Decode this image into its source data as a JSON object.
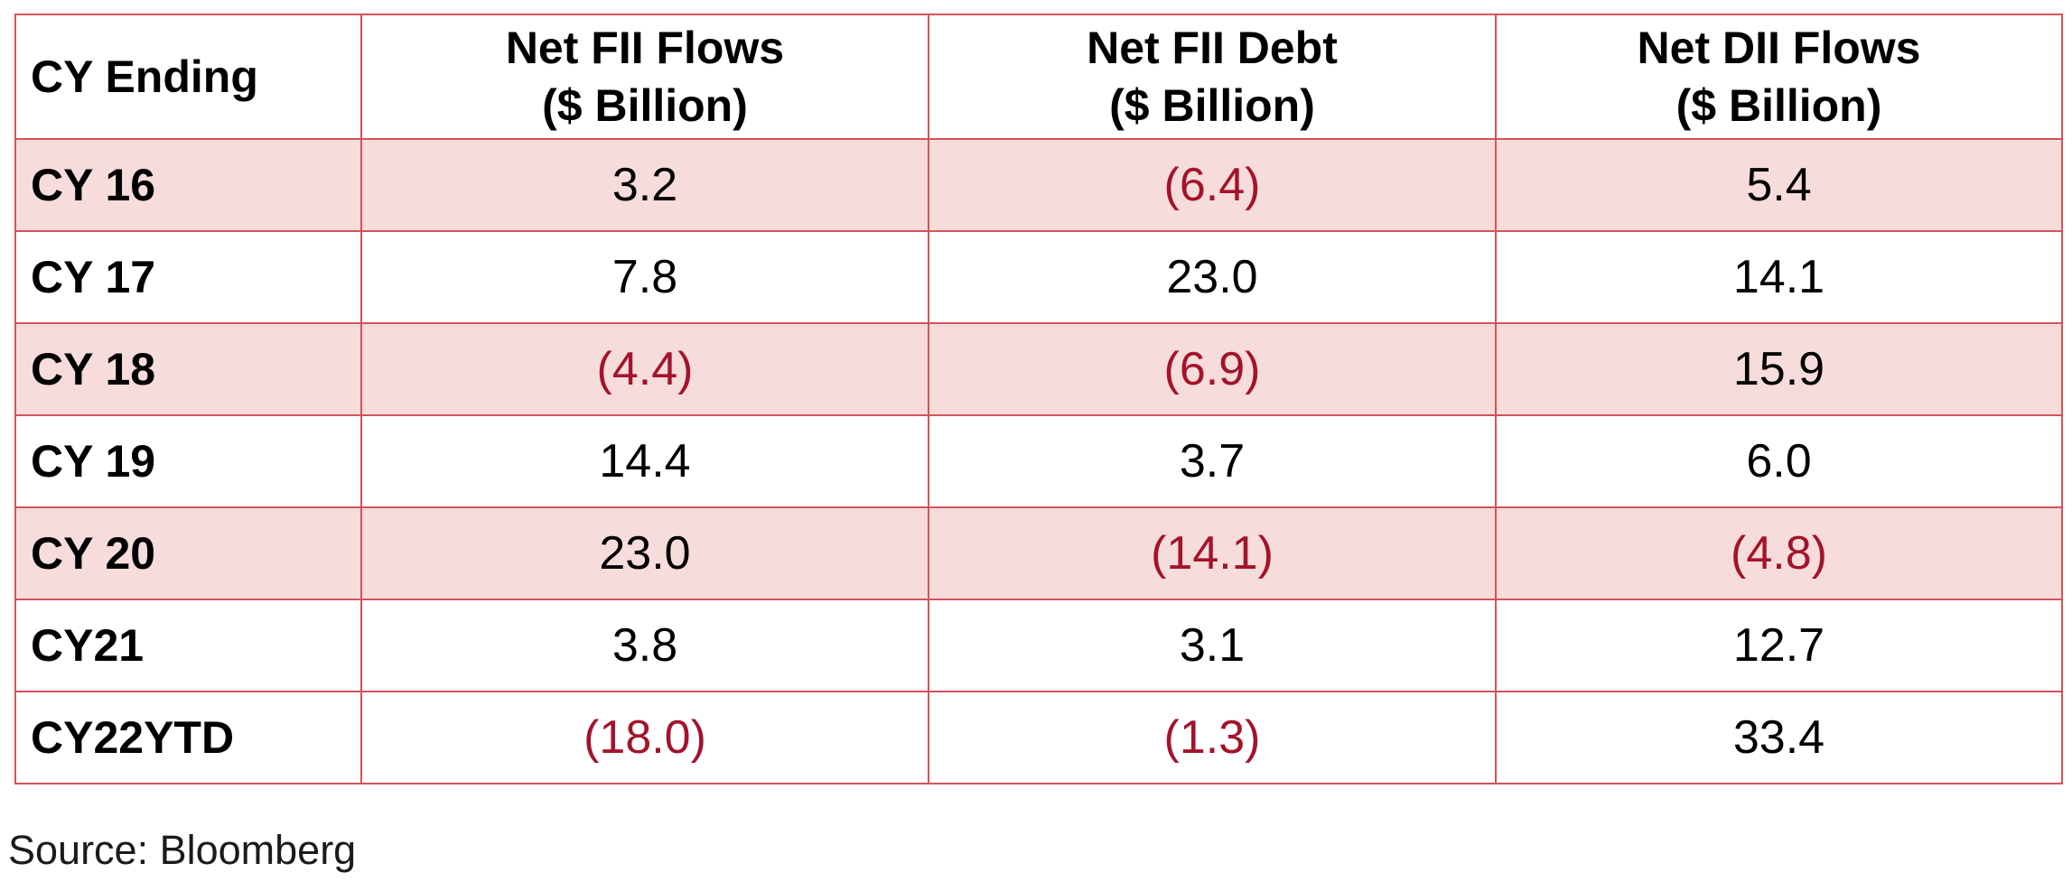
{
  "table": {
    "columns": [
      {
        "line1": "CY Ending",
        "line2": ""
      },
      {
        "line1": "Net FII Flows",
        "line2": "($ Billion)"
      },
      {
        "line1": "Net FII Debt",
        "line2": "($ Billion)"
      },
      {
        "line1": "Net DII Flows",
        "line2": "($ Billion)"
      }
    ],
    "rows": [
      {
        "label": "CY 16",
        "values": [
          "3.2",
          "(6.4)",
          "5.4"
        ],
        "shaded": true
      },
      {
        "label": "CY 17",
        "values": [
          "7.8",
          "23.0",
          "14.1"
        ],
        "shaded": false
      },
      {
        "label": "CY 18",
        "values": [
          "(4.4)",
          "(6.9)",
          "15.9"
        ],
        "shaded": true
      },
      {
        "label": "CY 19",
        "values": [
          "14.4",
          "3.7",
          "6.0"
        ],
        "shaded": false
      },
      {
        "label": "CY 20",
        "values": [
          "23.0",
          "(14.1)",
          "(4.8)"
        ],
        "shaded": true
      },
      {
        "label": "CY21",
        "values": [
          "3.8",
          "3.1",
          "12.7"
        ],
        "shaded": false
      },
      {
        "label": "CY22YTD",
        "values": [
          "(18.0)",
          "(1.3)",
          "33.4"
        ],
        "shaded": false
      }
    ]
  },
  "source_note": "Source: Bloomberg",
  "colors": {
    "border": "#d3535a",
    "shaded_row": "#f6dcda",
    "negative_value": "#a3132b"
  }
}
